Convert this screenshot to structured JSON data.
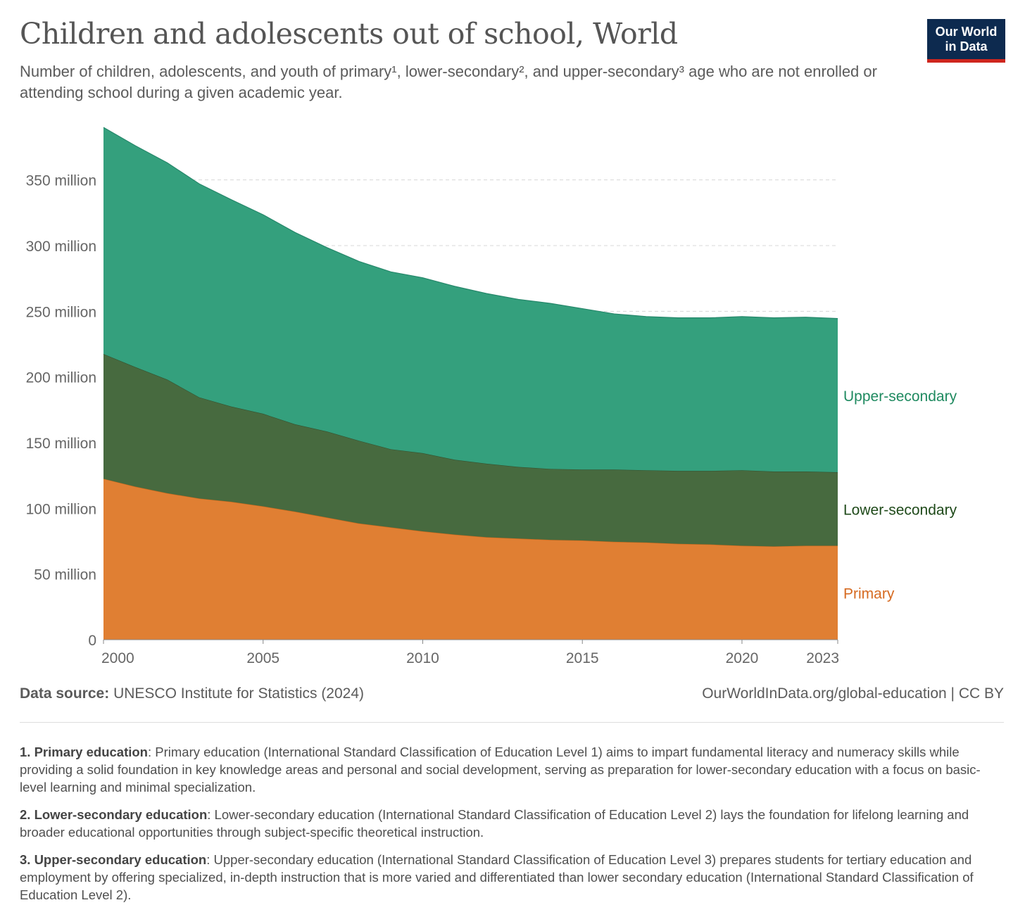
{
  "header": {
    "title": "Children and adolescents out of school, World",
    "subtitle": "Number of children, adolescents, and youth of primary¹, lower-secondary², and upper-secondary³ age who are not enrolled or attending school during a given academic year.",
    "logo_line1": "Our World",
    "logo_line2": "in Data"
  },
  "colors": {
    "primary": "#e07f33",
    "lower_secondary": "#476a3f",
    "upper_secondary": "#34a07d",
    "primary_label": "#d66b22",
    "lower_label": "#1f4a1a",
    "upper_label": "#1f8a60"
  },
  "chart_data": {
    "type": "area",
    "stacked": true,
    "title": "Children and adolescents out of school, World",
    "x": [
      2000,
      2001,
      2002,
      2003,
      2004,
      2005,
      2006,
      2007,
      2008,
      2009,
      2010,
      2011,
      2012,
      2013,
      2014,
      2015,
      2016,
      2017,
      2018,
      2019,
      2020,
      2021,
      2022,
      2023
    ],
    "series": [
      {
        "name": "Primary",
        "values": [
          122.5,
          116.5,
          111.5,
          107.5,
          105.0,
          101.5,
          97.5,
          93.0,
          88.5,
          85.5,
          82.5,
          80.0,
          78.0,
          77.0,
          76.0,
          75.5,
          74.5,
          74.0,
          73.0,
          72.5,
          71.5,
          71.0,
          71.5,
          71.5
        ]
      },
      {
        "name": "Lower-secondary",
        "values": [
          95.0,
          91.0,
          86.5,
          77.0,
          72.5,
          70.5,
          66.5,
          65.5,
          63.0,
          59.5,
          59.5,
          57.0,
          56.0,
          54.5,
          54.0,
          54.0,
          55.0,
          55.0,
          55.5,
          56.0,
          57.5,
          57.0,
          56.5,
          56.0
        ]
      },
      {
        "name": "Upper-secondary",
        "values": [
          172.5,
          168.5,
          165.0,
          162.5,
          157.5,
          151.5,
          146.0,
          140.0,
          136.5,
          135.0,
          133.5,
          132.0,
          129.5,
          127.5,
          126.0,
          122.5,
          118.5,
          117.0,
          116.5,
          116.5,
          117.0,
          117.0,
          117.5,
          117.0
        ]
      }
    ],
    "yticks": [
      "0",
      "50 million",
      "100 million",
      "150 million",
      "200 million",
      "250 million",
      "300 million",
      "350 million"
    ],
    "ytick_values": [
      0,
      50,
      100,
      150,
      200,
      250,
      300,
      350
    ],
    "xticks": [
      "2000",
      "2005",
      "2010",
      "2015",
      "2020",
      "2023"
    ],
    "xtick_values": [
      2000,
      2005,
      2010,
      2015,
      2020,
      2023
    ],
    "ylim": [
      0,
      390
    ],
    "xlim": [
      2000,
      2023
    ],
    "grid": "horizontal dashed",
    "legend": "inline labels at right",
    "xlabel": "",
    "ylabel": ""
  },
  "footer": {
    "source_label": "Data source:",
    "source_text": "UNESCO Institute for Statistics (2024)",
    "url": "OurWorldInData.org/global-education | CC BY"
  },
  "notes": [
    {
      "title": "1. Primary education",
      "text": ": Primary education (International Standard Classification of Education Level 1) aims to impart fundamental literacy and numeracy skills while providing a solid foundation in key knowledge areas and personal and social development, serving as preparation for lower-secondary education with a focus on basic-level learning and minimal specialization."
    },
    {
      "title": "2. Lower-secondary education",
      "text": ": Lower-secondary education (International Standard Classification of Education Level 2) lays the foundation for lifelong learning and broader educational opportunities through subject-specific theoretical instruction."
    },
    {
      "title": "3. Upper-secondary education",
      "text": ": Upper-secondary education (International Standard Classification of Education Level 3) prepares students for tertiary education and employment by offering specialized, in-depth instruction that is more varied and differentiated than lower secondary education (International Standard Classification of Education Level 2)."
    }
  ]
}
